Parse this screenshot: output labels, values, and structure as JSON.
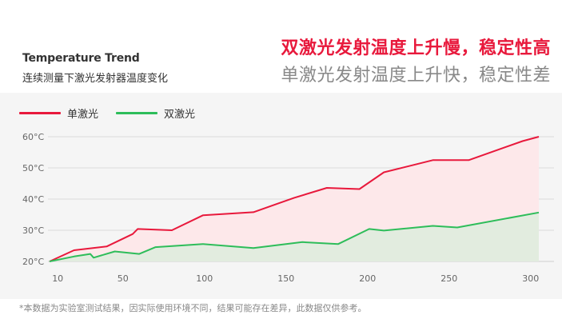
{
  "header": {
    "title": "Temperature Trend",
    "subtitle": "连续测量下激光发射器温度变化",
    "headline_primary": "双激光发射温度上升慢，稳定性高",
    "headline_secondary": "单激光发射温度上升快，稳定性差"
  },
  "footnote": "*本数据为实验室测试结果，因实际使用环境不同，结果可能存在差异，此数据仅供参考。",
  "colors": {
    "single": "#e8193c",
    "dual": "#2ebd5a",
    "single_fill": "#fde8ea",
    "dual_fill": "#e2ecdf"
  },
  "chart_data": {
    "type": "area",
    "x_ticks": [
      10,
      50,
      100,
      150,
      200,
      250,
      300
    ],
    "y_ticks": [
      "20°C",
      "30°C",
      "40°C",
      "50°C",
      "60°C"
    ],
    "xlim": [
      5,
      300
    ],
    "ylim": [
      20,
      60
    ],
    "grid": "horizontal",
    "legend_position": "top-left",
    "series": [
      {
        "name": "单激光",
        "color": "#e8193c",
        "x": [
          5,
          20,
          40,
          56,
          59,
          80,
          99,
          130,
          155,
          175,
          195,
          210,
          240,
          262,
          295,
          305
        ],
        "y": [
          20,
          23.6,
          24.8,
          28.8,
          30.4,
          30,
          34.8,
          35.8,
          40.4,
          43.6,
          43.2,
          48.6,
          52.5,
          52.5,
          58.6,
          60
        ]
      },
      {
        "name": "双激光",
        "color": "#2ebd5a",
        "x": [
          5,
          20,
          30,
          32,
          45,
          60,
          70,
          99,
          130,
          160,
          182,
          201,
          210,
          240,
          255,
          305
        ],
        "y": [
          20,
          21.6,
          22.4,
          21.2,
          23.2,
          22.4,
          24.6,
          25.6,
          24.3,
          26.2,
          25.6,
          30.4,
          29.9,
          31.4,
          30.9,
          35.7
        ]
      }
    ]
  }
}
